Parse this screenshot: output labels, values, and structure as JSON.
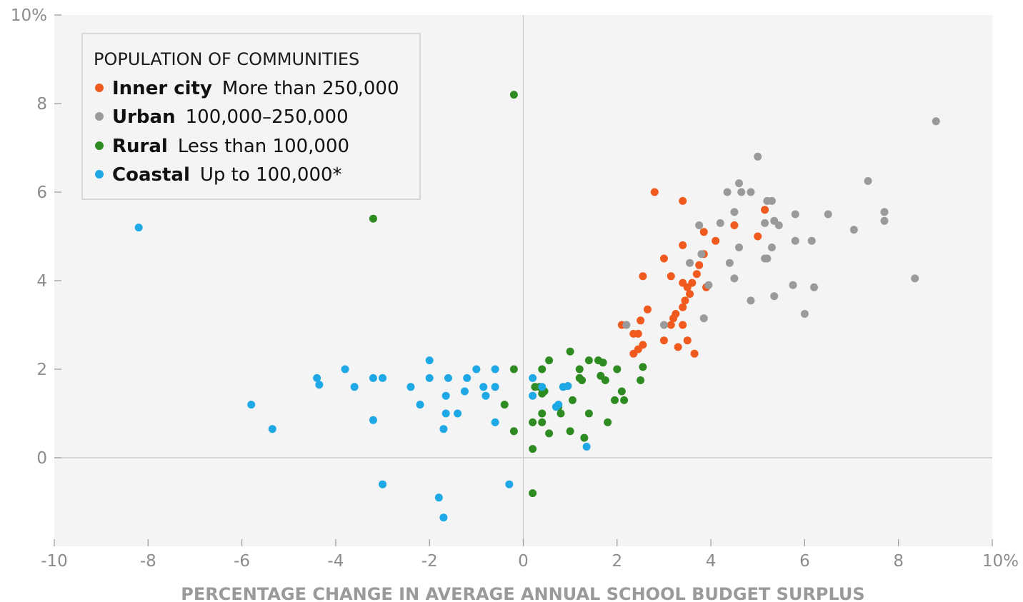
{
  "chart_data": {
    "type": "scatter",
    "xlabel": "PERCENTAGE CHANGE IN AVERAGE ANNUAL SCHOOL BUDGET SURPLUS",
    "ylabel": "",
    "xlim": [
      -10,
      10
    ],
    "ylim": [
      -2,
      10
    ],
    "x_ticks": [
      "-10",
      "-8",
      "-6",
      "-4",
      "-2",
      "0",
      "2",
      "4",
      "6",
      "8",
      "10%"
    ],
    "y_ticks": [
      "10%",
      "8",
      "6",
      "4",
      "2",
      "0"
    ],
    "grid": false,
    "legend_position": "top-left",
    "legend_title": "POPULATION OF COMMUNITIES",
    "series": [
      {
        "name": "Inner city",
        "description": "More than 250,000",
        "color": "#f05a1e",
        "points": [
          [
            2.8,
            6.0
          ],
          [
            3.4,
            5.8
          ],
          [
            5.15,
            5.6
          ],
          [
            3.85,
            5.1
          ],
          [
            4.5,
            5.25
          ],
          [
            4.1,
            4.9
          ],
          [
            3.4,
            4.8
          ],
          [
            5.0,
            5.0
          ],
          [
            3.0,
            4.5
          ],
          [
            3.85,
            4.6
          ],
          [
            3.75,
            4.35
          ],
          [
            3.7,
            4.15
          ],
          [
            2.55,
            4.1
          ],
          [
            3.15,
            4.1
          ],
          [
            3.4,
            3.95
          ],
          [
            3.6,
            3.95
          ],
          [
            3.9,
            3.85
          ],
          [
            3.5,
            3.85
          ],
          [
            3.55,
            3.7
          ],
          [
            3.45,
            3.55
          ],
          [
            3.4,
            3.4
          ],
          [
            2.65,
            3.35
          ],
          [
            3.25,
            3.25
          ],
          [
            3.2,
            3.15
          ],
          [
            2.5,
            3.1
          ],
          [
            2.1,
            3.0
          ],
          [
            3.15,
            3.0
          ],
          [
            3.4,
            3.0
          ],
          [
            2.35,
            2.8
          ],
          [
            2.45,
            2.8
          ],
          [
            3.0,
            2.65
          ],
          [
            3.5,
            2.65
          ],
          [
            2.55,
            2.55
          ],
          [
            2.45,
            2.45
          ],
          [
            3.3,
            2.5
          ],
          [
            2.35,
            2.35
          ],
          [
            3.65,
            2.35
          ]
        ]
      },
      {
        "name": "Urban",
        "description": "100,000–250,000",
        "color": "#9a9a9a",
        "points": [
          [
            8.8,
            7.6
          ],
          [
            5.0,
            6.8
          ],
          [
            7.35,
            6.25
          ],
          [
            4.6,
            6.2
          ],
          [
            4.35,
            6.0
          ],
          [
            4.65,
            6.0
          ],
          [
            4.85,
            6.0
          ],
          [
            5.2,
            5.8
          ],
          [
            5.3,
            5.8
          ],
          [
            4.5,
            5.55
          ],
          [
            5.8,
            5.5
          ],
          [
            6.5,
            5.5
          ],
          [
            7.7,
            5.55
          ],
          [
            7.7,
            5.35
          ],
          [
            5.35,
            5.35
          ],
          [
            5.15,
            5.3
          ],
          [
            5.45,
            5.25
          ],
          [
            4.2,
            5.3
          ],
          [
            3.75,
            5.25
          ],
          [
            7.05,
            5.15
          ],
          [
            5.8,
            4.9
          ],
          [
            6.15,
            4.9
          ],
          [
            4.6,
            4.75
          ],
          [
            5.3,
            4.75
          ],
          [
            3.8,
            4.6
          ],
          [
            5.15,
            4.5
          ],
          [
            5.2,
            4.5
          ],
          [
            3.55,
            4.4
          ],
          [
            4.4,
            4.4
          ],
          [
            4.5,
            4.05
          ],
          [
            8.35,
            4.05
          ],
          [
            5.75,
            3.9
          ],
          [
            6.2,
            3.85
          ],
          [
            3.95,
            3.9
          ],
          [
            5.35,
            3.65
          ],
          [
            4.85,
            3.55
          ],
          [
            6.0,
            3.25
          ],
          [
            3.85,
            3.15
          ],
          [
            3.0,
            3.0
          ],
          [
            2.2,
            3.0
          ]
        ]
      },
      {
        "name": "Rural",
        "description": "Less than 100,000",
        "color": "#2e8b22",
        "points": [
          [
            -0.2,
            8.2
          ],
          [
            -3.2,
            5.4
          ],
          [
            1.0,
            2.4
          ],
          [
            0.55,
            2.2
          ],
          [
            1.4,
            2.2
          ],
          [
            1.6,
            2.2
          ],
          [
            1.7,
            2.15
          ],
          [
            0.4,
            2.0
          ],
          [
            -0.2,
            2.0
          ],
          [
            1.2,
            2.0
          ],
          [
            2.0,
            2.0
          ],
          [
            2.55,
            2.05
          ],
          [
            1.65,
            1.85
          ],
          [
            1.2,
            1.8
          ],
          [
            1.25,
            1.75
          ],
          [
            1.75,
            1.75
          ],
          [
            2.5,
            1.75
          ],
          [
            0.25,
            1.6
          ],
          [
            0.35,
            1.6
          ],
          [
            0.45,
            1.5
          ],
          [
            0.4,
            1.45
          ],
          [
            2.1,
            1.5
          ],
          [
            1.05,
            1.3
          ],
          [
            1.95,
            1.3
          ],
          [
            2.15,
            1.3
          ],
          [
            -0.4,
            1.2
          ],
          [
            0.75,
            1.15
          ],
          [
            0.4,
            1.0
          ],
          [
            0.8,
            1.0
          ],
          [
            1.4,
            1.0
          ],
          [
            0.2,
            0.8
          ],
          [
            0.4,
            0.8
          ],
          [
            1.8,
            0.8
          ],
          [
            -0.2,
            0.6
          ],
          [
            0.55,
            0.55
          ],
          [
            1.0,
            0.6
          ],
          [
            1.3,
            0.45
          ],
          [
            0.2,
            0.2
          ],
          [
            0.2,
            -0.8
          ]
        ]
      },
      {
        "name": "Coastal",
        "description": "Up to 100,000*",
        "color": "#1ea8e6",
        "points": [
          [
            -8.2,
            5.2
          ],
          [
            -2.0,
            2.2
          ],
          [
            -3.8,
            2.0
          ],
          [
            -1.0,
            2.0
          ],
          [
            -0.6,
            2.0
          ],
          [
            -4.4,
            1.8
          ],
          [
            -3.2,
            1.8
          ],
          [
            -3.0,
            1.8
          ],
          [
            -2.0,
            1.8
          ],
          [
            -1.6,
            1.8
          ],
          [
            -1.2,
            1.8
          ],
          [
            0.2,
            1.8
          ],
          [
            -4.35,
            1.65
          ],
          [
            -3.6,
            1.6
          ],
          [
            -2.4,
            1.6
          ],
          [
            -0.85,
            1.6
          ],
          [
            -0.6,
            1.6
          ],
          [
            0.85,
            1.6
          ],
          [
            0.95,
            1.62
          ],
          [
            0.4,
            1.6
          ],
          [
            -1.25,
            1.5
          ],
          [
            -1.65,
            1.4
          ],
          [
            -0.8,
            1.4
          ],
          [
            0.2,
            1.4
          ],
          [
            -5.8,
            1.2
          ],
          [
            -2.2,
            1.2
          ],
          [
            0.75,
            1.2
          ],
          [
            0.7,
            1.15
          ],
          [
            -1.65,
            1.0
          ],
          [
            -1.4,
            1.0
          ],
          [
            -3.2,
            0.85
          ],
          [
            -0.6,
            0.8
          ],
          [
            -5.35,
            0.65
          ],
          [
            -1.7,
            0.65
          ],
          [
            1.35,
            0.25
          ],
          [
            -3.0,
            -0.6
          ],
          [
            -0.3,
            -0.6
          ],
          [
            -1.8,
            -0.9
          ],
          [
            -1.7,
            -1.35
          ]
        ]
      }
    ]
  }
}
